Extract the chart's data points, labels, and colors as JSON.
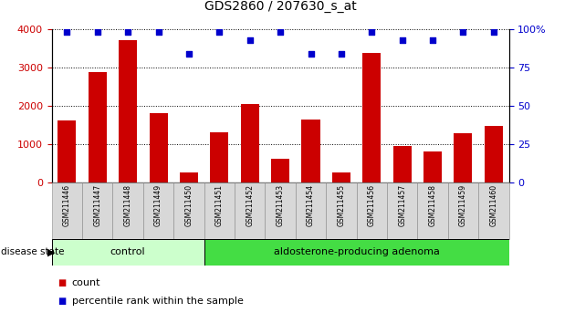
{
  "title": "GDS2860 / 207630_s_at",
  "samples": [
    "GSM211446",
    "GSM211447",
    "GSM211448",
    "GSM211449",
    "GSM211450",
    "GSM211451",
    "GSM211452",
    "GSM211453",
    "GSM211454",
    "GSM211455",
    "GSM211456",
    "GSM211457",
    "GSM211458",
    "GSM211459",
    "GSM211460"
  ],
  "counts": [
    1620,
    2880,
    3720,
    1820,
    270,
    1320,
    2040,
    620,
    1640,
    270,
    3380,
    940,
    820,
    1280,
    1480
  ],
  "percentile_ranks": [
    98,
    98,
    98,
    98,
    84,
    98,
    93,
    98,
    84,
    84,
    98,
    93,
    93,
    98,
    98
  ],
  "bar_color": "#cc0000",
  "dot_color": "#0000cc",
  "control_group": [
    0,
    1,
    2,
    3,
    4
  ],
  "adenoma_group": [
    5,
    6,
    7,
    8,
    9,
    10,
    11,
    12,
    13,
    14
  ],
  "control_label": "control",
  "adenoma_label": "aldosterone-producing adenoma",
  "control_bg": "#ccffcc",
  "adenoma_bg": "#44dd44",
  "ylim_left": [
    0,
    4000
  ],
  "ylim_right": [
    0,
    100
  ],
  "yticks_left": [
    0,
    1000,
    2000,
    3000,
    4000
  ],
  "ytick_labels_right": [
    "0",
    "25",
    "50",
    "75",
    "100%"
  ],
  "ytick_vals_right": [
    0,
    25,
    50,
    75,
    100
  ],
  "tick_color_left": "#cc0000",
  "tick_color_right": "#0000cc",
  "legend_count_label": "count",
  "legend_pct_label": "percentile rank within the sample",
  "disease_state_label": "disease state",
  "title_fontsize": 10,
  "tick_fontsize": 8,
  "sample_fontsize": 5.5,
  "group_fontsize": 8,
  "legend_fontsize": 8
}
